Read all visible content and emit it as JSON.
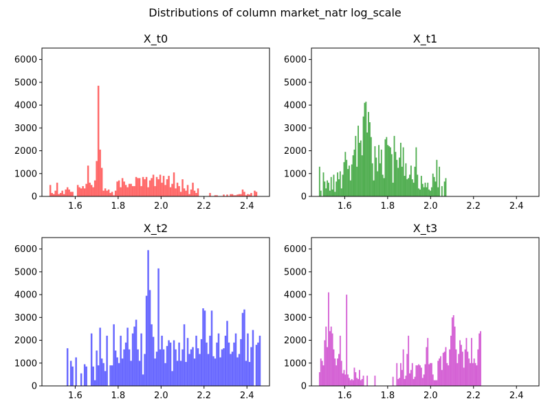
{
  "figure": {
    "title": "Distributions of column market_natr log_scale"
  },
  "chart_data": [
    {
      "type": "bar",
      "subtype": "histogram",
      "title": "X_t0",
      "color": "#ff4d4d",
      "xlim": [
        1.445,
        2.505
      ],
      "ylim": [
        0,
        6500
      ],
      "xticks": [
        "1.6",
        "1.8",
        "2.0",
        "2.2",
        "2.4"
      ],
      "yticks": [
        "0",
        "1000",
        "2000",
        "3000",
        "4000",
        "5000",
        "6000"
      ],
      "bin_width": 0.008,
      "x": [
        1.484,
        1.492,
        1.5,
        1.508,
        1.516,
        1.524,
        1.532,
        1.54,
        1.548,
        1.556,
        1.564,
        1.572,
        1.58,
        1.588,
        1.612,
        1.62,
        1.628,
        1.636,
        1.644,
        1.652,
        1.66,
        1.668,
        1.676,
        1.684,
        1.692,
        1.7,
        1.708,
        1.716,
        1.724,
        1.732,
        1.74,
        1.748,
        1.756,
        1.764,
        1.772,
        1.78,
        1.788,
        1.796,
        1.804,
        1.812,
        1.82,
        1.828,
        1.836,
        1.844,
        1.852,
        1.86,
        1.868,
        1.876,
        1.884,
        1.892,
        1.9,
        1.908,
        1.916,
        1.924,
        1.932,
        1.94,
        1.948,
        1.956,
        1.964,
        1.972,
        1.98,
        1.988,
        1.996,
        2.004,
        2.012,
        2.02,
        2.028,
        2.036,
        2.044,
        2.052,
        2.06,
        2.068,
        2.076,
        2.084,
        2.092,
        2.1,
        2.108,
        2.116,
        2.124,
        2.132,
        2.14,
        2.148,
        2.156,
        2.164,
        2.172,
        2.228,
        2.252,
        2.26,
        2.292,
        2.308,
        2.324,
        2.332,
        2.34,
        2.348,
        2.356,
        2.364,
        2.372,
        2.38,
        2.388,
        2.396,
        2.404,
        2.412,
        2.42,
        2.436,
        2.444
      ],
      "values": [
        500,
        150,
        100,
        250,
        600,
        100,
        150,
        250,
        100,
        300,
        400,
        300,
        200,
        200,
        500,
        400,
        350,
        450,
        350,
        550,
        1350,
        600,
        500,
        400,
        700,
        1550,
        4850,
        2050,
        1250,
        250,
        350,
        250,
        300,
        150,
        200,
        50,
        250,
        650,
        700,
        400,
        800,
        650,
        500,
        400,
        550,
        550,
        450,
        450,
        850,
        800,
        800,
        450,
        850,
        750,
        850,
        400,
        700,
        800,
        950,
        450,
        850,
        750,
        950,
        600,
        900,
        500,
        750,
        900,
        400,
        550,
        1050,
        350,
        600,
        450,
        200,
        750,
        350,
        250,
        500,
        100,
        300,
        600,
        250,
        150,
        350,
        150,
        50,
        50,
        80,
        80,
        100,
        100,
        50,
        50,
        80,
        100,
        100,
        300,
        200,
        50,
        100,
        80,
        150,
        250,
        200
      ],
      "xlabel": "",
      "ylabel": ""
    },
    {
      "type": "bar",
      "subtype": "histogram",
      "title": "X_t1",
      "color": "#33a033",
      "xlim": [
        1.445,
        2.505
      ],
      "ylim": [
        0,
        6500
      ],
      "xticks": [
        "1.6",
        "1.8",
        "2.0",
        "2.2",
        "2.4"
      ],
      "yticks": [
        "0",
        "1000",
        "2000",
        "3000",
        "4000",
        "5000",
        "6000"
      ],
      "bin_width": 0.006,
      "x": [
        1.483,
        1.489,
        1.495,
        1.501,
        1.507,
        1.513,
        1.519,
        1.525,
        1.531,
        1.537,
        1.543,
        1.549,
        1.555,
        1.561,
        1.567,
        1.573,
        1.579,
        1.585,
        1.591,
        1.597,
        1.603,
        1.609,
        1.615,
        1.621,
        1.627,
        1.633,
        1.639,
        1.645,
        1.651,
        1.657,
        1.663,
        1.669,
        1.675,
        1.681,
        1.687,
        1.693,
        1.699,
        1.705,
        1.711,
        1.717,
        1.723,
        1.729,
        1.735,
        1.741,
        1.747,
        1.753,
        1.759,
        1.765,
        1.771,
        1.777,
        1.783,
        1.789,
        1.795,
        1.801,
        1.807,
        1.813,
        1.819,
        1.825,
        1.831,
        1.837,
        1.843,
        1.849,
        1.855,
        1.861,
        1.867,
        1.873,
        1.879,
        1.885,
        1.891,
        1.897,
        1.903,
        1.909,
        1.915,
        1.921,
        1.927,
        1.933,
        1.939,
        1.945,
        1.951,
        1.957,
        1.963,
        1.969,
        1.975,
        1.981,
        1.987,
        1.993,
        1.999,
        2.005,
        2.011,
        2.017,
        2.023,
        2.029,
        2.035,
        2.041,
        2.053,
        2.065,
        2.071
      ],
      "values": [
        1300,
        250,
        0,
        1050,
        650,
        350,
        700,
        600,
        250,
        850,
        300,
        950,
        200,
        650,
        1050,
        750,
        1100,
        350,
        950,
        1500,
        1950,
        1600,
        1200,
        1350,
        700,
        1400,
        1800,
        2050,
        2650,
        1300,
        3100,
        2350,
        2450,
        1800,
        3500,
        4100,
        4150,
        2800,
        3700,
        3250,
        2600,
        1450,
        700,
        2200,
        1700,
        1100,
        2250,
        1450,
        2050,
        950,
        800,
        2500,
        2600,
        2250,
        2200,
        2150,
        1850,
        600,
        2650,
        1950,
        1600,
        1250,
        1700,
        2350,
        1300,
        2150,
        900,
        1450,
        750,
        800,
        950,
        1350,
        750,
        600,
        1300,
        2150,
        950,
        350,
        300,
        900,
        550,
        400,
        600,
        400,
        600,
        300,
        250,
        400,
        1000,
        850,
        650,
        1600,
        400,
        1300,
        450,
        650,
        800
      ],
      "xlabel": "",
      "ylabel": ""
    },
    {
      "type": "bar",
      "subtype": "histogram",
      "title": "X_t2",
      "color": "#4d4dff",
      "xlim": [
        1.445,
        2.505
      ],
      "ylim": [
        0,
        6500
      ],
      "xticks": [
        "1.6",
        "1.8",
        "2.0",
        "2.2",
        "2.4"
      ],
      "yticks": [
        "0",
        "1000",
        "2000",
        "3000",
        "4000",
        "5000",
        "6000"
      ],
      "bin_width": 0.008,
      "x": [
        1.564,
        1.58,
        1.588,
        1.604,
        1.628,
        1.644,
        1.652,
        1.66,
        1.676,
        1.684,
        1.692,
        1.7,
        1.708,
        1.716,
        1.724,
        1.732,
        1.74,
        1.748,
        1.756,
        1.764,
        1.772,
        1.78,
        1.788,
        1.796,
        1.804,
        1.812,
        1.82,
        1.828,
        1.836,
        1.844,
        1.852,
        1.86,
        1.868,
        1.876,
        1.884,
        1.892,
        1.9,
        1.908,
        1.916,
        1.924,
        1.932,
        1.94,
        1.948,
        1.956,
        1.964,
        1.972,
        1.98,
        1.988,
        1.996,
        2.004,
        2.012,
        2.02,
        2.028,
        2.036,
        2.044,
        2.052,
        2.06,
        2.068,
        2.076,
        2.084,
        2.092,
        2.1,
        2.108,
        2.116,
        2.124,
        2.132,
        2.14,
        2.148,
        2.156,
        2.164,
        2.172,
        2.18,
        2.188,
        2.196,
        2.204,
        2.212,
        2.22,
        2.228,
        2.236,
        2.244,
        2.252,
        2.26,
        2.268,
        2.276,
        2.284,
        2.292,
        2.3,
        2.308,
        2.316,
        2.324,
        2.332,
        2.34,
        2.348,
        2.356,
        2.364,
        2.372,
        2.38,
        2.388,
        2.396,
        2.404,
        2.412,
        2.42,
        2.428,
        2.436,
        2.444,
        2.452,
        2.46
      ],
      "values": [
        1650,
        1100,
        850,
        1250,
        550,
        950,
        850,
        0,
        2300,
        850,
        250,
        1550,
        900,
        2550,
        1200,
        1000,
        650,
        2200,
        0,
        900,
        900,
        2700,
        1550,
        1250,
        1000,
        2200,
        1200,
        1600,
        1900,
        2550,
        1600,
        1100,
        2300,
        2600,
        2900,
        1600,
        1100,
        2300,
        500,
        1400,
        3950,
        5950,
        4200,
        2700,
        2150,
        1200,
        1500,
        5150,
        1600,
        2200,
        1600,
        1000,
        1750,
        2000,
        1900,
        650,
        2000,
        1600,
        1100,
        1900,
        1100,
        1600,
        2700,
        1050,
        2100,
        1400,
        1600,
        1700,
        1200,
        2200,
        1650,
        1400,
        2050,
        3400,
        3300,
        1900,
        1400,
        2200,
        3300,
        1300,
        1200,
        1900,
        2300,
        1250,
        1600,
        1650,
        2200,
        2850,
        1900,
        1400,
        1500,
        1900,
        2300,
        1250,
        1400,
        2050,
        3200,
        3350,
        1100,
        2300,
        1050,
        1700,
        2450,
        0,
        1800,
        1900,
        2200
      ],
      "xlabel": "",
      "ylabel": ""
    },
    {
      "type": "bar",
      "subtype": "histogram",
      "title": "X_t3",
      "color": "#cc44cc",
      "xlim": [
        1.445,
        2.505
      ],
      "ylim": [
        0,
        6500
      ],
      "xticks": [
        "1.6",
        "1.8",
        "2.0",
        "2.2",
        "2.4"
      ],
      "yticks": [
        "0",
        "1000",
        "2000",
        "3000",
        "4000",
        "5000",
        "6000"
      ],
      "bin_width": 0.006,
      "x": [
        1.483,
        1.489,
        1.495,
        1.501,
        1.507,
        1.513,
        1.519,
        1.525,
        1.531,
        1.537,
        1.543,
        1.549,
        1.555,
        1.561,
        1.567,
        1.573,
        1.579,
        1.585,
        1.591,
        1.597,
        1.603,
        1.609,
        1.615,
        1.621,
        1.627,
        1.633,
        1.639,
        1.645,
        1.651,
        1.657,
        1.663,
        1.669,
        1.675,
        1.681,
        1.687,
        1.705,
        1.741,
        1.825,
        1.843,
        1.849,
        1.855,
        1.861,
        1.867,
        1.873,
        1.879,
        1.885,
        1.891,
        1.897,
        1.903,
        1.909,
        1.915,
        1.921,
        1.927,
        1.933,
        1.939,
        1.945,
        1.951,
        1.957,
        1.963,
        1.969,
        1.975,
        1.981,
        1.987,
        1.993,
        1.999,
        2.005,
        2.011,
        2.017,
        2.023,
        2.029,
        2.035,
        2.041,
        2.047,
        2.053,
        2.059,
        2.065,
        2.071,
        2.077,
        2.083,
        2.089,
        2.095,
        2.101,
        2.107,
        2.113,
        2.119,
        2.125,
        2.131,
        2.137,
        2.143,
        2.149,
        2.155,
        2.161,
        2.167,
        2.173,
        2.179,
        2.185,
        2.191,
        2.197,
        2.203,
        2.209,
        2.215,
        2.221,
        2.227,
        2.233
      ],
      "values": [
        600,
        1200,
        1100,
        900,
        2000,
        2600,
        1700,
        4100,
        2400,
        2600,
        2300,
        1600,
        1200,
        900,
        1200,
        1400,
        2200,
        1100,
        550,
        700,
        500,
        4000,
        500,
        350,
        250,
        300,
        250,
        800,
        600,
        350,
        300,
        700,
        250,
        300,
        450,
        450,
        450,
        400,
        1000,
        300,
        350,
        1000,
        700,
        1600,
        300,
        450,
        1400,
        2200,
        550,
        700,
        1000,
        300,
        400,
        900,
        900,
        950,
        900,
        800,
        350,
        500,
        950,
        1700,
        2100,
        950,
        1000,
        1000,
        500,
        250,
        250,
        250,
        1100,
        1200,
        1300,
        700,
        1450,
        1500,
        1700,
        1000,
        900,
        1600,
        2200,
        3000,
        3100,
        2600,
        1600,
        1000,
        1400,
        2000,
        1800,
        1500,
        800,
        1600,
        2100,
        1500,
        1200,
        1000,
        2100,
        1000,
        1200,
        1000,
        900,
        1600,
        2300,
        2400
      ],
      "xlabel": "",
      "ylabel": ""
    }
  ]
}
